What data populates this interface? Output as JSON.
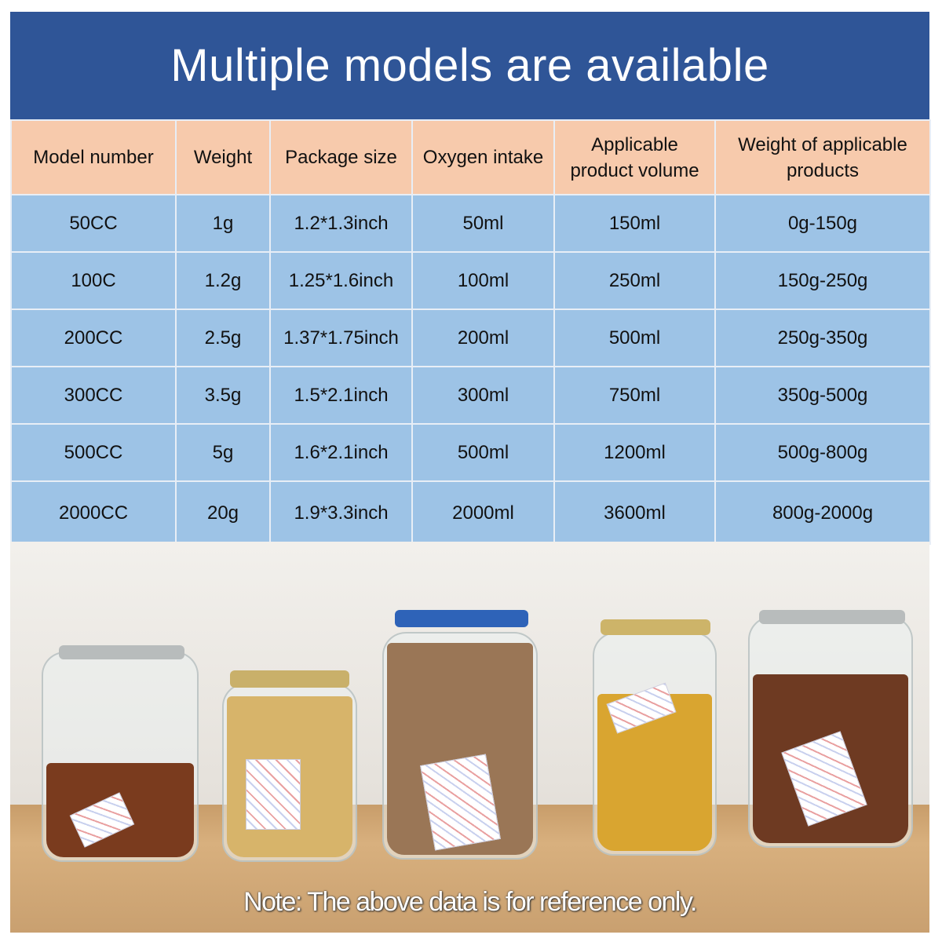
{
  "title": "Multiple models are available",
  "table": {
    "headers": [
      "Model number",
      "Weight",
      "Package size",
      "Oxygen intake",
      "Applicable product volume",
      "Weight of applicable products"
    ],
    "rows": [
      [
        "50CC",
        "1g",
        "1.2*1.3inch",
        "50ml",
        "150ml",
        "0g-150g"
      ],
      [
        "100C",
        "1.2g",
        "1.25*1.6inch",
        "100ml",
        "250ml",
        "150g-250g"
      ],
      [
        "200CC",
        "2.5g",
        "1.37*1.75inch",
        "200ml",
        "500ml",
        "250g-350g"
      ],
      [
        "300CC",
        "3.5g",
        "1.5*2.1inch",
        "300ml",
        "750ml",
        "350g-500g"
      ],
      [
        "500CC",
        "5g",
        "1.6*2.1inch",
        "500ml",
        "1200ml",
        "500g-800g"
      ],
      [
        "2000CC",
        "20g",
        "1.9*3.3inch",
        "2000ml",
        "3600ml",
        "800g-2000g"
      ]
    ]
  },
  "note": "Note: The above data is for reference only.",
  "colors": {
    "title_band": "#2f5597",
    "header_bg": "#f7caac",
    "row_bg": "#9dc3e6"
  }
}
